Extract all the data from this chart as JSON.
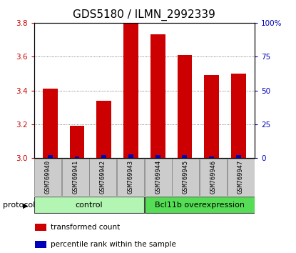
{
  "title": "GDS5180 / ILMN_2992339",
  "samples": [
    "GSM769940",
    "GSM769941",
    "GSM769942",
    "GSM769943",
    "GSM769944",
    "GSM769945",
    "GSM769946",
    "GSM769947"
  ],
  "red_values": [
    3.41,
    3.19,
    3.34,
    3.8,
    3.73,
    3.61,
    3.49,
    3.5
  ],
  "blue_values": [
    2,
    1,
    2,
    3,
    2,
    2,
    1,
    2
  ],
  "ylim_left": [
    3.0,
    3.8
  ],
  "ylim_right": [
    0,
    100
  ],
  "yticks_left": [
    3.0,
    3.2,
    3.4,
    3.6,
    3.8
  ],
  "yticks_right": [
    0,
    25,
    50,
    75,
    100
  ],
  "ytick_labels_right": [
    "0",
    "25",
    "50",
    "75",
    "100%"
  ],
  "groups": [
    {
      "label": "control",
      "indices": [
        0,
        1,
        2,
        3
      ],
      "color": "#b3f5b3"
    },
    {
      "label": "Bcl11b overexpression",
      "indices": [
        4,
        5,
        6,
        7
      ],
      "color": "#55dd55"
    }
  ],
  "group_label": "protocol",
  "bar_color_red": "#cc0000",
  "bar_color_blue": "#0000bb",
  "bar_width": 0.55,
  "blue_bar_width": 0.18,
  "background_color": "#ffffff",
  "plot_bg_color": "#ffffff",
  "tick_bg_color": "#cccccc",
  "grid_color": "#555555",
  "legend_items": [
    {
      "color": "#cc0000",
      "label": "transformed count"
    },
    {
      "color": "#0000bb",
      "label": "percentile rank within the sample"
    }
  ],
  "title_fontsize": 11,
  "tick_fontsize": 7.5,
  "label_fontsize": 8.5
}
